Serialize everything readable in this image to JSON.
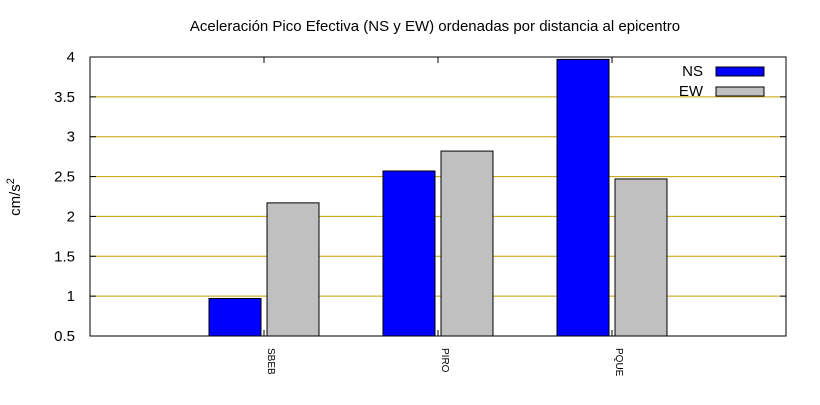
{
  "chart_data": {
    "type": "bar",
    "title": "Aceleración Pico Efectiva (NS y EW) ordenadas por distancia al epicentro",
    "xlabel": "",
    "ylabel": "cm/s",
    "ylabel_superscript": "2",
    "ylim": [
      0.5,
      4
    ],
    "yticks": [
      "0.5",
      "1",
      "1.5",
      "2",
      "2.5",
      "3",
      "3.5",
      "4"
    ],
    "categories": [
      "SBEB",
      "PIRO",
      "PQUE"
    ],
    "series": [
      {
        "name": "NS",
        "values": [
          0.97,
          2.57,
          3.97
        ],
        "color": "#0000ff"
      },
      {
        "name": "EW",
        "values": [
          2.17,
          2.82,
          2.47
        ],
        "color": "#c0c0c0"
      }
    ],
    "grid": true,
    "grid_color": "#c8a000",
    "legend_position": "top-right"
  }
}
